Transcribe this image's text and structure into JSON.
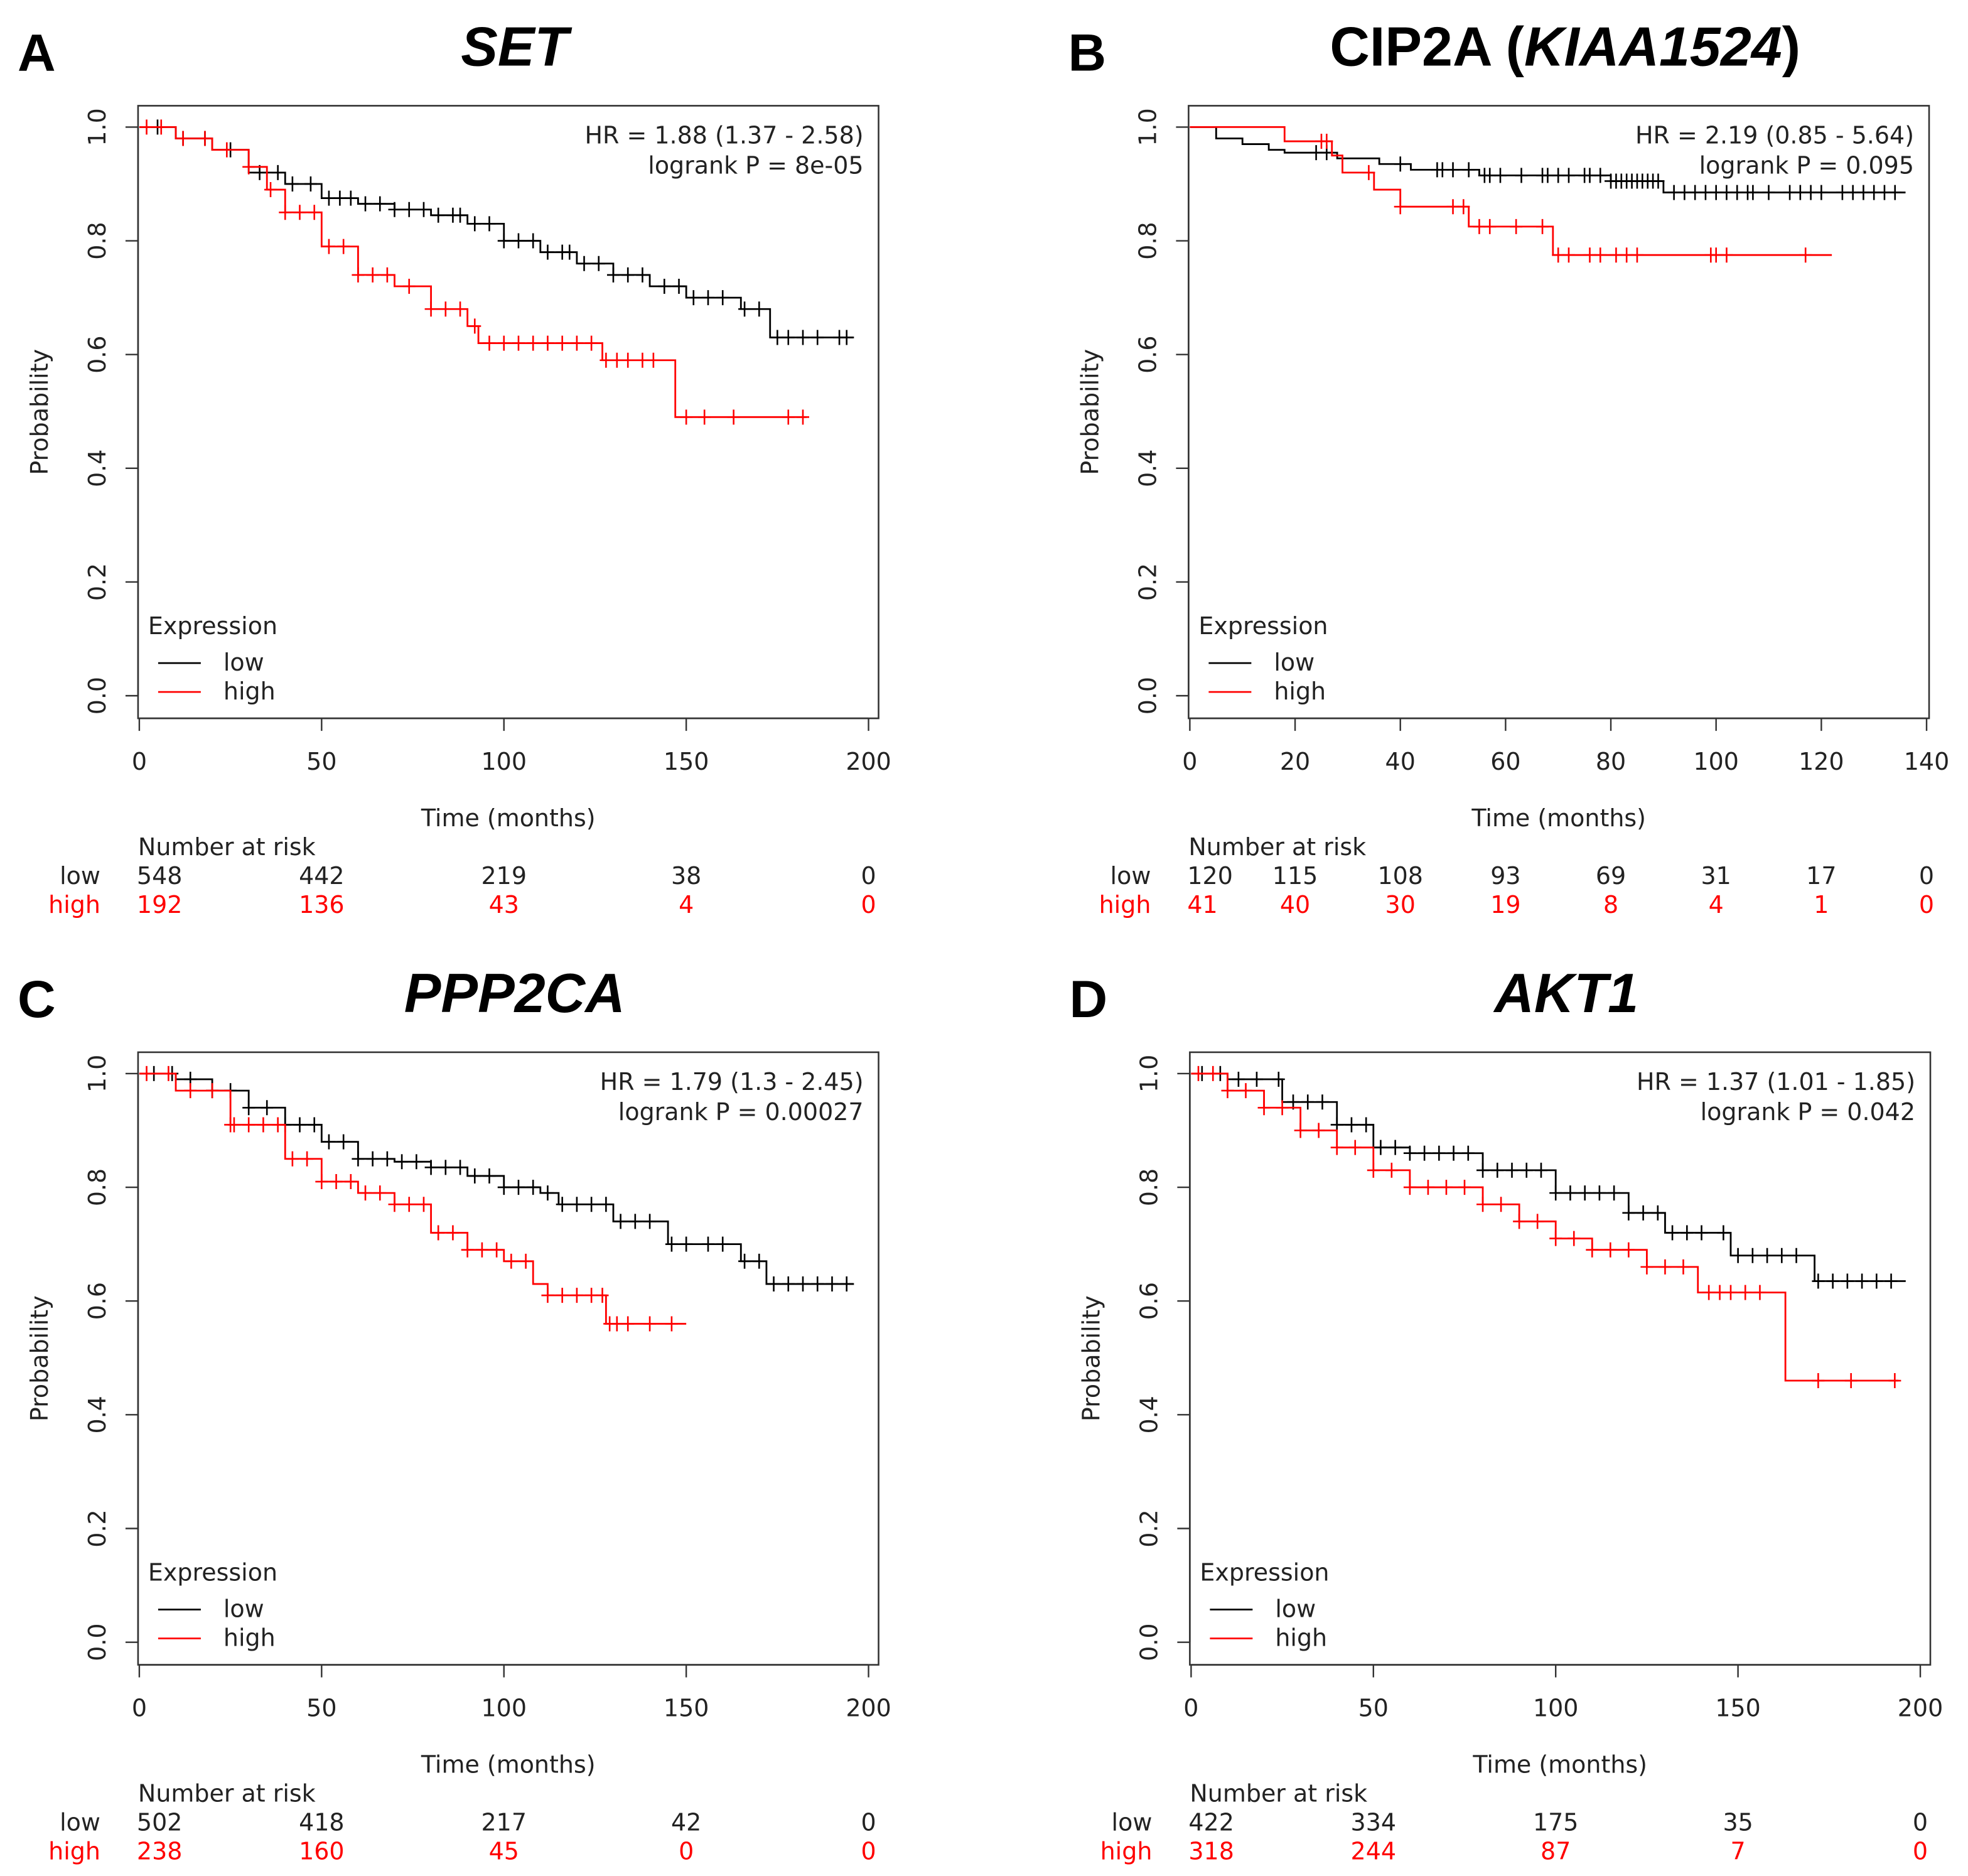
{
  "chart_data": [
    {
      "type": "line",
      "panel_label": "A",
      "title": {
        "prefix": "",
        "italic": "SET",
        "suffix": ""
      },
      "xlabel": "Time (months)",
      "ylabel": "Probability",
      "xlim": [
        0,
        200
      ],
      "ylim": [
        0,
        1
      ],
      "xticks": [
        0,
        50,
        100,
        150,
        200
      ],
      "yticks": [
        "0.0",
        "0.2",
        "0.4",
        "0.6",
        "0.8",
        "1.0"
      ],
      "hr_text": "HR = 1.88 (1.37 - 2.58)",
      "p_text": "logrank P = 8e-05",
      "legend": {
        "title": "Expression",
        "placement": "bottom-left"
      },
      "series": [
        {
          "name": "low",
          "color": "#000000",
          "end": 196,
          "steps": [
            [
              0,
              1
            ],
            [
              10,
              0.98
            ],
            [
              20,
              0.96
            ],
            [
              30,
              0.92
            ],
            [
              40,
              0.9
            ],
            [
              50,
              0.875
            ],
            [
              60,
              0.865
            ],
            [
              70,
              0.855
            ],
            [
              80,
              0.845
            ],
            [
              90,
              0.83
            ],
            [
              100,
              0.8
            ],
            [
              110,
              0.78
            ],
            [
              120,
              0.76
            ],
            [
              130,
              0.74
            ],
            [
              140,
              0.72
            ],
            [
              150,
              0.7
            ],
            [
              165,
              0.68
            ],
            [
              173,
              0.63
            ]
          ],
          "censored": [
            5,
            12,
            18,
            25,
            33,
            38,
            42,
            47,
            52,
            55,
            58,
            62,
            66,
            70,
            74,
            78,
            82,
            86,
            88,
            92,
            96,
            100,
            104,
            108,
            112,
            116,
            118,
            122,
            126,
            130,
            134,
            138,
            144,
            148,
            152,
            156,
            160,
            166,
            170,
            175,
            178,
            182,
            186,
            192,
            194
          ]
        },
        {
          "name": "high",
          "color": "#ff0000",
          "end": 183,
          "steps": [
            [
              0,
              1
            ],
            [
              10,
              0.98
            ],
            [
              20,
              0.96
            ],
            [
              30,
              0.93
            ],
            [
              35,
              0.89
            ],
            [
              40,
              0.85
            ],
            [
              50,
              0.79
            ],
            [
              60,
              0.74
            ],
            [
              70,
              0.72
            ],
            [
              80,
              0.68
            ],
            [
              90,
              0.65
            ],
            [
              93,
              0.62
            ],
            [
              127,
              0.59
            ],
            [
              147,
              0.49
            ]
          ],
          "censored": [
            2,
            6,
            12,
            18,
            24,
            30,
            36,
            40,
            44,
            48,
            52,
            56,
            60,
            64,
            68,
            74,
            80,
            84,
            88,
            92,
            96,
            100,
            104,
            108,
            112,
            116,
            120,
            124,
            128,
            131,
            134,
            138,
            141,
            150,
            155,
            163,
            178,
            182
          ]
        }
      ],
      "risk_table": {
        "title": "Number at risk",
        "low": [
          "548",
          "442",
          "219",
          "38",
          "0"
        ],
        "high": [
          "192",
          "136",
          "43",
          "4",
          "0"
        ]
      }
    },
    {
      "type": "line",
      "panel_label": "B",
      "title": {
        "prefix": "CIP2A (",
        "italic": "KIAA1524",
        "suffix": ")"
      },
      "xlabel": "Time (months)",
      "ylabel": "Probability",
      "xlim": [
        0,
        140
      ],
      "ylim": [
        0,
        1
      ],
      "xticks": [
        0,
        20,
        40,
        60,
        80,
        100,
        120,
        140
      ],
      "yticks": [
        "0.0",
        "0.2",
        "0.4",
        "0.6",
        "0.8",
        "1.0"
      ],
      "hr_text": "HR = 2.19 (0.85 - 5.64)",
      "p_text": "logrank P = 0.095",
      "legend": {
        "title": "Expression",
        "placement": "bottom-left"
      },
      "series": [
        {
          "name": "low",
          "color": "#000000",
          "end": 136,
          "steps": [
            [
              0,
              1
            ],
            [
              5,
              0.98
            ],
            [
              10,
              0.97
            ],
            [
              15,
              0.96
            ],
            [
              18,
              0.955
            ],
            [
              28,
              0.945
            ],
            [
              36,
              0.935
            ],
            [
              42,
              0.925
            ],
            [
              55,
              0.915
            ],
            [
              80,
              0.905
            ],
            [
              90,
              0.885
            ]
          ],
          "censored": [
            24,
            26,
            40,
            47,
            48,
            50,
            53,
            56,
            57,
            59,
            63,
            67,
            68,
            70,
            72,
            75,
            76,
            78,
            80,
            81,
            82,
            83,
            84,
            85,
            86,
            87,
            88,
            89,
            92,
            94,
            96,
            98,
            100,
            102,
            104,
            106,
            107,
            110,
            114,
            116,
            118,
            120,
            124,
            126,
            128,
            130,
            132,
            134
          ]
        },
        {
          "name": "high",
          "color": "#ff0000",
          "end": 122,
          "steps": [
            [
              0,
              1
            ],
            [
              18,
              0.975
            ],
            [
              27,
              0.95
            ],
            [
              29,
              0.92
            ],
            [
              35,
              0.89
            ],
            [
              40,
              0.86
            ],
            [
              53,
              0.825
            ],
            [
              69,
              0.775
            ]
          ],
          "censored": [
            25,
            26,
            34,
            40,
            50,
            52,
            55,
            57,
            62,
            67,
            70,
            72,
            76,
            78,
            81,
            83,
            85,
            99,
            100,
            102,
            117
          ]
        }
      ],
      "risk_table": {
        "title": "Number at risk",
        "low": [
          "120",
          "115",
          "108",
          "93",
          "69",
          "31",
          "17",
          "0"
        ],
        "high": [
          "41",
          "40",
          "30",
          "19",
          "8",
          "4",
          "1",
          "0"
        ]
      }
    },
    {
      "type": "line",
      "panel_label": "C",
      "title": {
        "prefix": "",
        "italic": "PPP2CA",
        "suffix": ""
      },
      "xlabel": "Time (months)",
      "ylabel": "Probability",
      "xlim": [
        0,
        200
      ],
      "ylim": [
        0,
        1
      ],
      "xticks": [
        0,
        50,
        100,
        150,
        200
      ],
      "yticks": [
        "0.0",
        "0.2",
        "0.4",
        "0.6",
        "0.8",
        "1.0"
      ],
      "hr_text": "HR = 1.79 (1.3 - 2.45)",
      "p_text": "logrank P = 0.00027",
      "legend": {
        "title": "Expression",
        "placement": "bottom-left"
      },
      "series": [
        {
          "name": "low",
          "color": "#000000",
          "end": 196,
          "steps": [
            [
              0,
              1
            ],
            [
              10,
              0.99
            ],
            [
              20,
              0.97
            ],
            [
              30,
              0.94
            ],
            [
              40,
              0.91
            ],
            [
              50,
              0.88
            ],
            [
              60,
              0.85
            ],
            [
              70,
              0.845
            ],
            [
              80,
              0.835
            ],
            [
              90,
              0.82
            ],
            [
              100,
              0.8
            ],
            [
              110,
              0.79
            ],
            [
              115,
              0.77
            ],
            [
              130,
              0.74
            ],
            [
              145,
              0.7
            ],
            [
              165,
              0.67
            ],
            [
              172,
              0.63
            ]
          ],
          "censored": [
            4,
            9,
            14,
            20,
            25,
            30,
            35,
            40,
            44,
            48,
            52,
            56,
            60,
            64,
            68,
            72,
            76,
            80,
            84,
            88,
            92,
            96,
            100,
            104,
            108,
            112,
            116,
            120,
            124,
            128,
            132,
            136,
            140,
            146,
            150,
            156,
            160,
            166,
            170,
            174,
            178,
            182,
            186,
            190,
            194
          ]
        },
        {
          "name": "high",
          "color": "#ff0000",
          "end": 150,
          "steps": [
            [
              0,
              1
            ],
            [
              10,
              0.97
            ],
            [
              25,
              0.91
            ],
            [
              40,
              0.85
            ],
            [
              50,
              0.81
            ],
            [
              60,
              0.79
            ],
            [
              70,
              0.77
            ],
            [
              80,
              0.72
            ],
            [
              90,
              0.69
            ],
            [
              100,
              0.67
            ],
            [
              108,
              0.63
            ],
            [
              112,
              0.61
            ],
            [
              128,
              0.56
            ]
          ],
          "censored": [
            2,
            8,
            14,
            20,
            25,
            26,
            30,
            34,
            38,
            42,
            46,
            50,
            54,
            58,
            62,
            66,
            70,
            74,
            78,
            82,
            86,
            90,
            94,
            98,
            102,
            106,
            112,
            116,
            120,
            124,
            127,
            129,
            131,
            134,
            140,
            146
          ]
        }
      ],
      "risk_table": {
        "title": "Number at risk",
        "low": [
          "502",
          "418",
          "217",
          "42",
          "0"
        ],
        "high": [
          "238",
          "160",
          "45",
          "0",
          "0"
        ]
      }
    },
    {
      "type": "line",
      "panel_label": "D",
      "title": {
        "prefix": "",
        "italic": "AKT1",
        "suffix": ""
      },
      "xlabel": "Time (months)",
      "ylabel": "Probability",
      "xlim": [
        0,
        200
      ],
      "ylim": [
        0,
        1
      ],
      "xticks": [
        0,
        50,
        100,
        150,
        200
      ],
      "yticks": [
        "0.0",
        "0.2",
        "0.4",
        "0.6",
        "0.8",
        "1.0"
      ],
      "hr_text": "HR = 1.37 (1.01 - 1.85)",
      "p_text": "logrank P = 0.042",
      "legend": {
        "title": "Expression",
        "placement": "bottom-left"
      },
      "series": [
        {
          "name": "low",
          "color": "#000000",
          "end": 196,
          "steps": [
            [
              0,
              1
            ],
            [
              10,
              0.99
            ],
            [
              25,
              0.95
            ],
            [
              40,
              0.91
            ],
            [
              50,
              0.87
            ],
            [
              60,
              0.86
            ],
            [
              80,
              0.83
            ],
            [
              100,
              0.79
            ],
            [
              120,
              0.755
            ],
            [
              130,
              0.72
            ],
            [
              148,
              0.68
            ],
            [
              171,
              0.635
            ]
          ],
          "censored": [
            3,
            8,
            13,
            18,
            24,
            28,
            32,
            36,
            40,
            44,
            48,
            52,
            56,
            60,
            64,
            68,
            72,
            76,
            80,
            84,
            88,
            92,
            96,
            100,
            104,
            108,
            112,
            116,
            120,
            124,
            128,
            132,
            136,
            140,
            146,
            150,
            154,
            158,
            162,
            166,
            172,
            176,
            180,
            184,
            188,
            192
          ]
        },
        {
          "name": "high",
          "color": "#ff0000",
          "end": 194,
          "steps": [
            [
              0,
              1
            ],
            [
              10,
              0.97
            ],
            [
              20,
              0.94
            ],
            [
              30,
              0.9
            ],
            [
              40,
              0.87
            ],
            [
              50,
              0.83
            ],
            [
              60,
              0.8
            ],
            [
              80,
              0.77
            ],
            [
              90,
              0.74
            ],
            [
              100,
              0.71
            ],
            [
              110,
              0.69
            ],
            [
              125,
              0.66
            ],
            [
              139,
              0.615
            ],
            [
              163,
              0.46
            ]
          ],
          "censored": [
            2,
            6,
            10,
            15,
            20,
            25,
            30,
            35,
            40,
            45,
            50,
            55,
            60,
            65,
            70,
            75,
            80,
            85,
            90,
            95,
            100,
            105,
            110,
            115,
            120,
            125,
            130,
            135,
            142,
            145,
            148,
            152,
            156,
            172,
            181,
            193
          ]
        }
      ],
      "risk_table": {
        "title": "Number at risk",
        "low": [
          "422",
          "334",
          "175",
          "35",
          "0"
        ],
        "high": [
          "318",
          "244",
          "87",
          "7",
          "0"
        ]
      }
    }
  ]
}
